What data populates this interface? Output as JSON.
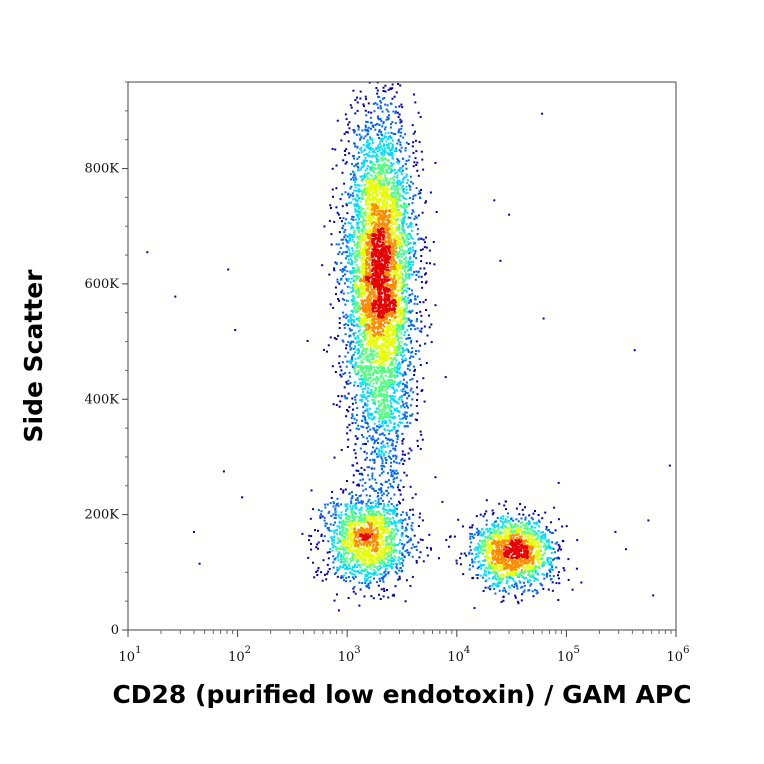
{
  "chart_data": {
    "type": "scatter",
    "title": "",
    "xlabel": "CD28 (purified low endotoxin) / GAM APC",
    "ylabel": "Side Scatter",
    "x_scale": "log",
    "y_scale": "linear",
    "xlim": [
      10,
      1000000
    ],
    "ylim": [
      0,
      950000
    ],
    "x_ticks": [
      {
        "base": "10",
        "exp": "1",
        "value": 10
      },
      {
        "base": "10",
        "exp": "2",
        "value": 100
      },
      {
        "base": "10",
        "exp": "3",
        "value": 1000
      },
      {
        "base": "10",
        "exp": "4",
        "value": 10000
      },
      {
        "base": "10",
        "exp": "5",
        "value": 100000
      },
      {
        "base": "10",
        "exp": "6",
        "value": 1000000
      }
    ],
    "y_ticks": [
      {
        "label": "0",
        "value": 0
      },
      {
        "label": "200K",
        "value": 200000
      },
      {
        "label": "400K",
        "value": 400000
      },
      {
        "label": "600K",
        "value": 600000
      },
      {
        "label": "800K",
        "value": 800000
      }
    ],
    "grid": false,
    "legend": "none",
    "color_scale": [
      "#0000b4",
      "#0064ff",
      "#00dcff",
      "#50ff80",
      "#e6ff00",
      "#ff8c00",
      "#e60000"
    ],
    "populations": [
      {
        "x_median": 2000,
        "y_median": 620000,
        "x_spread_log10": 0.16,
        "y_sd": 135000,
        "points": 5200
      },
      {
        "x_median": 1500,
        "y_median": 155000,
        "x_spread_log10": 0.2,
        "y_sd": 38000,
        "points": 1500
      },
      {
        "x_median": 32000,
        "y_median": 135000,
        "x_spread_log10": 0.19,
        "y_sd": 30000,
        "points": 1500
      },
      {
        "x_median": 2200,
        "y_median": 330000,
        "x_spread_log10": 0.14,
        "y_sd": 70000,
        "points": 300
      }
    ],
    "outliers": [
      {
        "x": 15,
        "y": 655000
      },
      {
        "x": 27,
        "y": 578000
      },
      {
        "x": 82,
        "y": 625000
      },
      {
        "x": 95,
        "y": 520000
      },
      {
        "x": 75,
        "y": 275000
      },
      {
        "x": 45,
        "y": 115000
      },
      {
        "x": 40,
        "y": 170000
      },
      {
        "x": 110,
        "y": 230000
      },
      {
        "x": 420000,
        "y": 485000
      },
      {
        "x": 280000,
        "y": 170000
      },
      {
        "x": 560000,
        "y": 190000
      },
      {
        "x": 620000,
        "y": 60000
      },
      {
        "x": 880000,
        "y": 285000
      },
      {
        "x": 22000,
        "y": 745000
      },
      {
        "x": 30000,
        "y": 720000
      },
      {
        "x": 60000,
        "y": 895000
      },
      {
        "x": 62000,
        "y": 540000
      },
      {
        "x": 25000,
        "y": 640000
      },
      {
        "x": 85000,
        "y": 255000
      },
      {
        "x": 350000,
        "y": 140000
      }
    ]
  }
}
